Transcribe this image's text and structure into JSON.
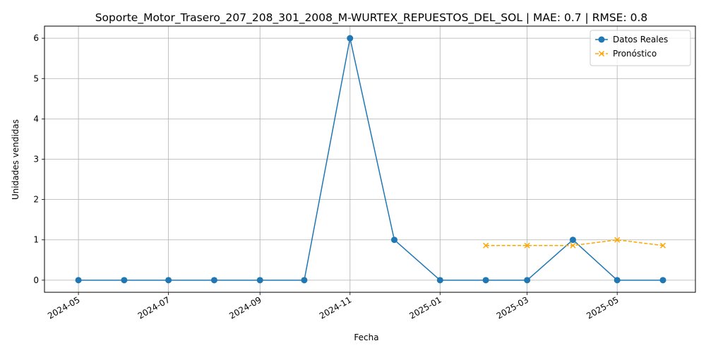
{
  "chart_data": {
    "type": "line",
    "title": "Soporte_Motor_Trasero_207_208_301_2008_M-WURTEX_REPUESTOS_DEL_SOL | MAE: 0.7 | RMSE: 0.8",
    "xlabel": "Fecha",
    "ylabel": "Unidades vendidas",
    "x_type": "date",
    "xlim": [
      "2024-04-08",
      "2025-06-23"
    ],
    "ylim": [
      -0.3,
      6.3
    ],
    "x_ticks": [
      "2024-05",
      "2024-07",
      "2024-09",
      "2024-11",
      "2025-01",
      "2025-03",
      "2025-05"
    ],
    "y_ticks": [
      0,
      1,
      2,
      3,
      4,
      5,
      6
    ],
    "grid": true,
    "legend_position": "top-right",
    "series": [
      {
        "name": "Datos Reales",
        "color": "#1f77b4",
        "line_style": "solid",
        "marker": "circle",
        "x": [
          "2024-05-01",
          "2024-06-01",
          "2024-07-01",
          "2024-08-01",
          "2024-09-01",
          "2024-10-01",
          "2024-11-01",
          "2024-12-01",
          "2025-01-01",
          "2025-02-01",
          "2025-03-01",
          "2025-04-01",
          "2025-05-01",
          "2025-06-01"
        ],
        "values": [
          0,
          0,
          0,
          0,
          0,
          0,
          6,
          1,
          0,
          0,
          0,
          1,
          0,
          0
        ]
      },
      {
        "name": "Pronóstico",
        "color": "#ffa500",
        "line_style": "dashed",
        "marker": "x",
        "x": [
          "2025-02-01",
          "2025-03-01",
          "2025-04-01",
          "2025-05-01",
          "2025-06-01"
        ],
        "values": [
          0.86,
          0.86,
          0.86,
          1.0,
          0.86
        ]
      }
    ]
  }
}
